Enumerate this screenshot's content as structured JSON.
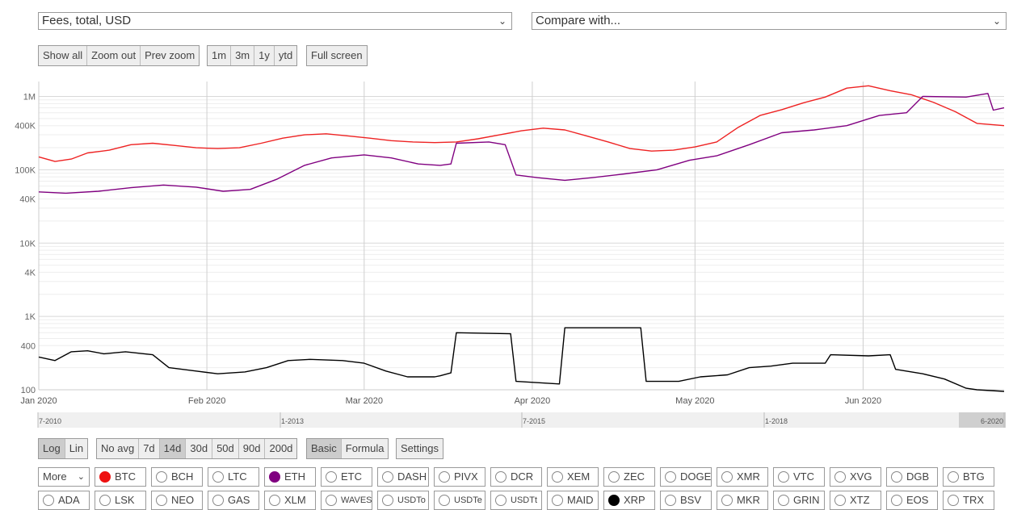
{
  "metric_select": {
    "value": "Fees, total, USD"
  },
  "compare_select": {
    "value": "Compare with..."
  },
  "zoom_buttons": [
    {
      "label": "Show all"
    },
    {
      "label": "Zoom out"
    },
    {
      "label": "Prev zoom"
    }
  ],
  "range_buttons": [
    {
      "label": "1m"
    },
    {
      "label": "3m"
    },
    {
      "label": "1y"
    },
    {
      "label": "ytd"
    }
  ],
  "fullscreen_label": "Full screen",
  "scale_buttons": [
    {
      "label": "Log",
      "active": true
    },
    {
      "label": "Lin",
      "active": false
    }
  ],
  "avg_buttons": [
    {
      "label": "No avg",
      "active": false
    },
    {
      "label": "7d",
      "active": false
    },
    {
      "label": "14d",
      "active": true
    },
    {
      "label": "30d",
      "active": false
    },
    {
      "label": "50d",
      "active": false
    },
    {
      "label": "90d",
      "active": false
    },
    {
      "label": "200d",
      "active": false
    }
  ],
  "mode_buttons": [
    {
      "label": "Basic",
      "active": true
    },
    {
      "label": "Formula",
      "active": false
    }
  ],
  "settings_label": "Settings",
  "more_select": {
    "value": "More"
  },
  "coins_row1": [
    {
      "label": "BTC",
      "color": "#ee1111",
      "selected": true
    },
    {
      "label": "BCH"
    },
    {
      "label": "LTC"
    },
    {
      "label": "ETH",
      "color": "#800080",
      "selected": true
    },
    {
      "label": "ETC"
    },
    {
      "label": "DASH"
    },
    {
      "label": "PIVX"
    },
    {
      "label": "DCR"
    },
    {
      "label": "XEM"
    },
    {
      "label": "ZEC"
    },
    {
      "label": "DOGE"
    },
    {
      "label": "XMR"
    },
    {
      "label": "VTC"
    },
    {
      "label": "XVG"
    },
    {
      "label": "DGB"
    },
    {
      "label": "BTG"
    }
  ],
  "coins_row2": [
    {
      "label": "ADA"
    },
    {
      "label": "LSK"
    },
    {
      "label": "NEO"
    },
    {
      "label": "GAS"
    },
    {
      "label": "XLM"
    },
    {
      "label": "WAVES",
      "small": true
    },
    {
      "label": "USDTo",
      "small": true
    },
    {
      "label": "USDTe",
      "small": true
    },
    {
      "label": "USDTt",
      "small": true
    },
    {
      "label": "MAID"
    },
    {
      "label": "XRP",
      "color": "#000000",
      "selected": true
    },
    {
      "label": "BSV"
    },
    {
      "label": "MKR"
    },
    {
      "label": "GRIN"
    },
    {
      "label": "XTZ"
    },
    {
      "label": "EOS"
    },
    {
      "label": "TRX"
    }
  ],
  "chart_data": {
    "type": "line",
    "title": "",
    "ylabel": "",
    "xlabel": "",
    "y_scale": "log",
    "ylim": [
      100,
      1600000
    ],
    "xlim": [
      "2020-01-01",
      "2020-06-27"
    ],
    "y_ticks": [
      {
        "value": 1000000,
        "label": "1M"
      },
      {
        "value": 400000,
        "label": "400K"
      },
      {
        "value": 100000,
        "label": "100K"
      },
      {
        "value": 40000,
        "label": "40K"
      },
      {
        "value": 10000,
        "label": "10K"
      },
      {
        "value": 4000,
        "label": "4K"
      },
      {
        "value": 1000,
        "label": "1K"
      },
      {
        "value": 400,
        "label": "400"
      },
      {
        "value": 100,
        "label": "100"
      }
    ],
    "x_ticks": [
      {
        "date": "2020-01-01",
        "label": "Jan 2020"
      },
      {
        "date": "2020-02-01",
        "label": "Feb 2020"
      },
      {
        "date": "2020-03-01",
        "label": "Mar 2020"
      },
      {
        "date": "2020-04-01",
        "label": "Apr 2020"
      },
      {
        "date": "2020-05-01",
        "label": "May 2020"
      },
      {
        "date": "2020-06-01",
        "label": "Jun 2020"
      }
    ],
    "navigator_labels": [
      "7-2010",
      "1-2013",
      "7-2015",
      "1-2018",
      "6-2020"
    ],
    "grid": true,
    "legend": "none",
    "series": [
      {
        "coin": "BTC",
        "color": "#ee2222",
        "points": [
          [
            "2020-01-01",
            150000
          ],
          [
            "2020-01-04",
            130000
          ],
          [
            "2020-01-07",
            140000
          ],
          [
            "2020-01-10",
            170000
          ],
          [
            "2020-01-14",
            185000
          ],
          [
            "2020-01-18",
            220000
          ],
          [
            "2020-01-22",
            230000
          ],
          [
            "2020-01-26",
            215000
          ],
          [
            "2020-01-30",
            200000
          ],
          [
            "2020-02-03",
            195000
          ],
          [
            "2020-02-07",
            200000
          ],
          [
            "2020-02-11",
            230000
          ],
          [
            "2020-02-15",
            270000
          ],
          [
            "2020-02-19",
            300000
          ],
          [
            "2020-02-23",
            310000
          ],
          [
            "2020-02-27",
            290000
          ],
          [
            "2020-03-02",
            270000
          ],
          [
            "2020-03-06",
            250000
          ],
          [
            "2020-03-10",
            240000
          ],
          [
            "2020-03-14",
            235000
          ],
          [
            "2020-03-18",
            240000
          ],
          [
            "2020-03-22",
            265000
          ],
          [
            "2020-03-26",
            300000
          ],
          [
            "2020-03-30",
            340000
          ],
          [
            "2020-04-03",
            370000
          ],
          [
            "2020-04-07",
            350000
          ],
          [
            "2020-04-11",
            290000
          ],
          [
            "2020-04-15",
            240000
          ],
          [
            "2020-04-19",
            195000
          ],
          [
            "2020-04-23",
            180000
          ],
          [
            "2020-04-27",
            185000
          ],
          [
            "2020-05-01",
            205000
          ],
          [
            "2020-05-05",
            240000
          ],
          [
            "2020-05-09",
            380000
          ],
          [
            "2020-05-13",
            550000
          ],
          [
            "2020-05-17",
            660000
          ],
          [
            "2020-05-21",
            820000
          ],
          [
            "2020-05-25",
            980000
          ],
          [
            "2020-05-29",
            1300000
          ],
          [
            "2020-06-02",
            1400000
          ],
          [
            "2020-06-06",
            1200000
          ],
          [
            "2020-06-10",
            1050000
          ],
          [
            "2020-06-14",
            830000
          ],
          [
            "2020-06-18",
            620000
          ],
          [
            "2020-06-22",
            430000
          ],
          [
            "2020-06-27",
            400000
          ]
        ]
      },
      {
        "coin": "ETH",
        "color": "#800080",
        "points": [
          [
            "2020-01-01",
            50000
          ],
          [
            "2020-01-06",
            48000
          ],
          [
            "2020-01-12",
            51000
          ],
          [
            "2020-01-18",
            57000
          ],
          [
            "2020-01-24",
            62000
          ],
          [
            "2020-01-30",
            58000
          ],
          [
            "2020-02-04",
            51000
          ],
          [
            "2020-02-09",
            54000
          ],
          [
            "2020-02-14",
            75000
          ],
          [
            "2020-02-19",
            115000
          ],
          [
            "2020-02-24",
            145000
          ],
          [
            "2020-03-01",
            160000
          ],
          [
            "2020-03-06",
            145000
          ],
          [
            "2020-03-11",
            120000
          ],
          [
            "2020-03-15",
            115000
          ],
          [
            "2020-03-17",
            120000
          ],
          [
            "2020-03-18",
            230000
          ],
          [
            "2020-03-24",
            240000
          ],
          [
            "2020-03-27",
            220000
          ],
          [
            "2020-03-29",
            85000
          ],
          [
            "2020-04-02",
            78000
          ],
          [
            "2020-04-07",
            72000
          ],
          [
            "2020-04-12",
            78000
          ],
          [
            "2020-04-18",
            88000
          ],
          [
            "2020-04-24",
            100000
          ],
          [
            "2020-04-30",
            135000
          ],
          [
            "2020-05-05",
            155000
          ],
          [
            "2020-05-11",
            220000
          ],
          [
            "2020-05-17",
            320000
          ],
          [
            "2020-05-23",
            350000
          ],
          [
            "2020-05-29",
            400000
          ],
          [
            "2020-06-04",
            550000
          ],
          [
            "2020-06-09",
            600000
          ],
          [
            "2020-06-12",
            1000000
          ],
          [
            "2020-06-20",
            980000
          ],
          [
            "2020-06-24",
            1100000
          ],
          [
            "2020-06-25",
            650000
          ],
          [
            "2020-06-27",
            700000
          ]
        ]
      },
      {
        "coin": "XRP",
        "color": "#000000",
        "points": [
          [
            "2020-01-01",
            280
          ],
          [
            "2020-01-04",
            250
          ],
          [
            "2020-01-07",
            330
          ],
          [
            "2020-01-10",
            340
          ],
          [
            "2020-01-13",
            310
          ],
          [
            "2020-01-17",
            330
          ],
          [
            "2020-01-22",
            300
          ],
          [
            "2020-01-25",
            200
          ],
          [
            "2020-01-30",
            180
          ],
          [
            "2020-02-03",
            165
          ],
          [
            "2020-02-08",
            175
          ],
          [
            "2020-02-12",
            200
          ],
          [
            "2020-02-16",
            250
          ],
          [
            "2020-02-20",
            260
          ],
          [
            "2020-02-26",
            250
          ],
          [
            "2020-03-01",
            230
          ],
          [
            "2020-03-05",
            180
          ],
          [
            "2020-03-09",
            150
          ],
          [
            "2020-03-14",
            150
          ],
          [
            "2020-03-15",
            155
          ],
          [
            "2020-03-17",
            170
          ],
          [
            "2020-03-18",
            600
          ],
          [
            "2020-03-28",
            580
          ],
          [
            "2020-03-29",
            130
          ],
          [
            "2020-04-06",
            120
          ],
          [
            "2020-04-07",
            700
          ],
          [
            "2020-04-21",
            700
          ],
          [
            "2020-04-22",
            130
          ],
          [
            "2020-04-28",
            130
          ],
          [
            "2020-05-02",
            150
          ],
          [
            "2020-05-07",
            160
          ],
          [
            "2020-05-11",
            200
          ],
          [
            "2020-05-15",
            210
          ],
          [
            "2020-05-19",
            230
          ],
          [
            "2020-05-25",
            230
          ],
          [
            "2020-05-26",
            300
          ],
          [
            "2020-06-02",
            290
          ],
          [
            "2020-06-06",
            300
          ],
          [
            "2020-06-07",
            190
          ],
          [
            "2020-06-12",
            165
          ],
          [
            "2020-06-16",
            140
          ],
          [
            "2020-06-20",
            105
          ],
          [
            "2020-06-22",
            100
          ],
          [
            "2020-06-27",
            95
          ]
        ]
      }
    ]
  }
}
